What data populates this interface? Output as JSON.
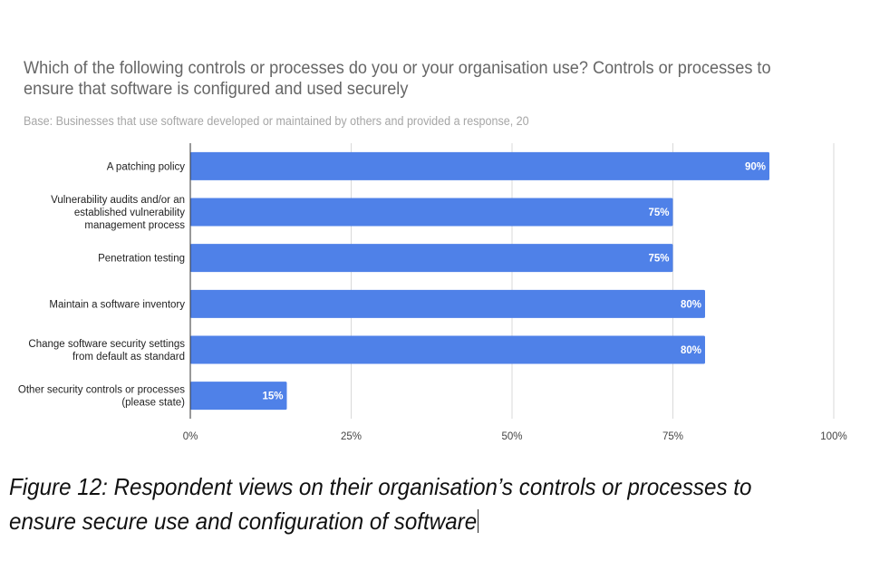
{
  "chart_data": {
    "type": "bar",
    "orientation": "horizontal",
    "title": "Which of the following controls or processes do you or your organisation use? Controls or processes to ensure that software is configured and used securely",
    "subtitle": "Base: Businesses that use software developed or maintained by others and provided a response, 20",
    "categories": [
      [
        "A patching policy"
      ],
      [
        "Vulnerability audits and/or an",
        "established vulnerability",
        "management process"
      ],
      [
        "Penetration testing"
      ],
      [
        "Maintain a software inventory"
      ],
      [
        "Change software security settings",
        "from default as standard"
      ],
      [
        "Other security controls or processes",
        "(please state)"
      ]
    ],
    "values": [
      90,
      75,
      75,
      80,
      80,
      15
    ],
    "data_labels": [
      "90%",
      "75%",
      "75%",
      "80%",
      "80%",
      "15%"
    ],
    "xlim": [
      0,
      100
    ],
    "x_ticks": [
      0,
      25,
      50,
      75,
      100
    ],
    "x_tick_labels": [
      "0%",
      "25%",
      "50%",
      "75%",
      "100%"
    ],
    "xlabel": "",
    "ylabel": "",
    "grid": true,
    "legend": "none",
    "bar_color": "#4f81e8"
  },
  "caption": "Figure 12: Respondent views on their organisation’s controls or processes to ensure secure use and configuration of software"
}
